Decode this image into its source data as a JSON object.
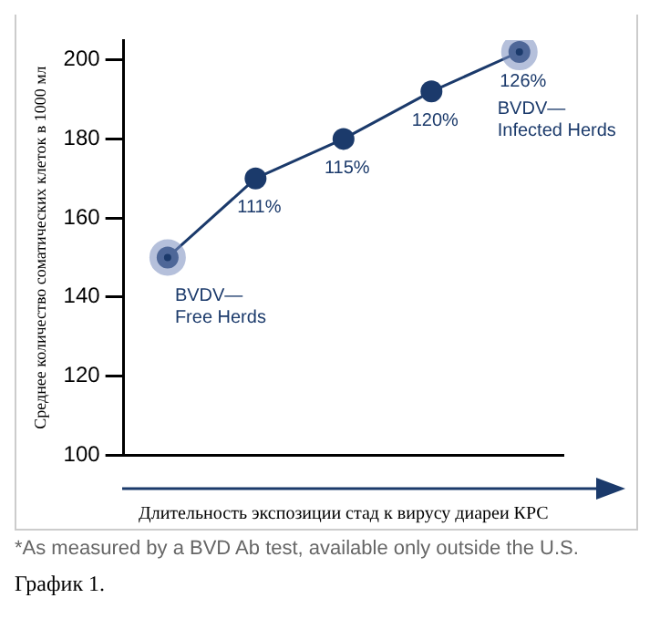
{
  "chart_data": {
    "type": "line",
    "categories": [
      null,
      null,
      null,
      null,
      null
    ],
    "series": [
      {
        "color": "#1b3a6b",
        "values": [
          150,
          170,
          180,
          192,
          202
        ]
      }
    ],
    "ylim": [
      100,
      205
    ],
    "yticks": [
      100,
      120,
      140,
      160,
      180,
      200
    ],
    "grid": false,
    "legend": false,
    "marker": "circle",
    "line_style": "solid",
    "ylabel": "Среднее количество соматических клеток в 1000 мл",
    "xlabel": "Длительность экспозиции стад к вирусу диареи КРС",
    "annotations": [
      {
        "text": "111%",
        "y": 170
      },
      {
        "text": "115%",
        "y": 180
      },
      {
        "text": "120%",
        "y": 192
      },
      {
        "text": "126%",
        "y": 202
      },
      "BVDV—\nFree Herds",
      "BVDV—\nInfected Herds",
      "*As measured by a BVD Ab test, available only outside the U.S.",
      "График 1."
    ]
  }
}
